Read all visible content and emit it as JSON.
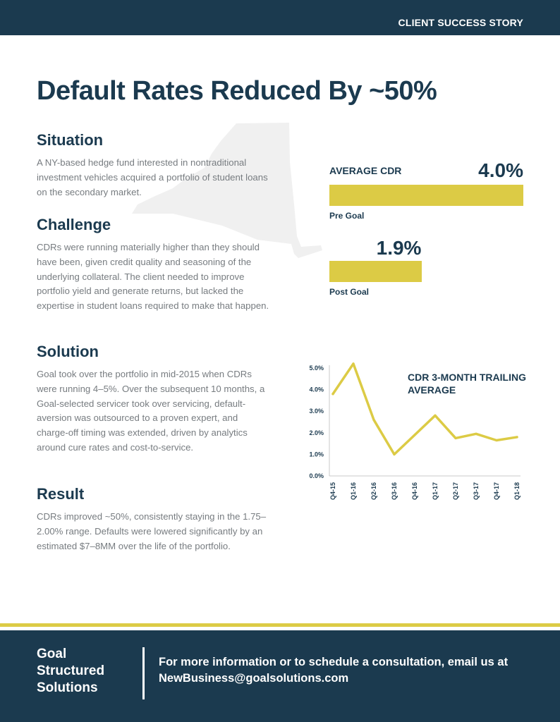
{
  "header": {
    "tag": "CLIENT SUCCESS STORY"
  },
  "title": "Default Rates Reduced By ~50%",
  "sections": [
    {
      "heading": "Situation",
      "body": "A NY-based hedge fund interested in nontraditional investment vehicles acquired a portfolio of student loans on the secondary market."
    },
    {
      "heading": "Challenge",
      "body": "CDRs were running materially higher than they should have been, given credit quality and seasoning of the underlying collateral. The client needed to improve portfolio yield and generate returns, but lacked the expertise in student loans required to make that happen."
    },
    {
      "heading": "Solution",
      "body": "Goal took over the portfolio in mid-2015 when CDRs were running 4–5%. Over the subsequent 10 months, a Goal-selected servicer took over servicing, default-aversion was outsourced to a proven expert, and charge-off timing was extended, driven by analytics around cure rates and cost-to-service."
    },
    {
      "heading": "Result",
      "body": "CDRs improved ~50%, consistently staying in the 1.75–2.00% range. Defaults were lowered significantly by an estimated $7–8MM over the life of the portfolio."
    }
  ],
  "colors": {
    "navy": "#1b3a4f",
    "gold": "#dccb45",
    "body_text": "#777c80",
    "map_gray": "#f0f0f0"
  },
  "chart_data": [
    {
      "type": "bar",
      "title": "AVERAGE CDR",
      "categories": [
        "Pre Goal",
        "Post Goal"
      ],
      "values": [
        4.0,
        1.9
      ],
      "value_labels": [
        "4.0%",
        "1.9%"
      ],
      "unit": "%",
      "orientation": "horizontal"
    },
    {
      "type": "line",
      "title": "CDR 3-MONTH TRAILING AVERAGE",
      "x": [
        "Q4-15",
        "Q1-16",
        "Q2-16",
        "Q3-16",
        "Q4-16",
        "Q1-17",
        "Q2-17",
        "Q3-17",
        "Q4-17",
        "Q1-18"
      ],
      "series": [
        {
          "values": [
            3.8,
            5.2,
            2.6,
            1.0,
            1.9,
            2.8,
            1.75,
            1.95,
            1.65,
            1.8
          ]
        }
      ],
      "yticks": [
        "5.0%",
        "4.0%",
        "3.0%",
        "2.0%",
        "1.0%",
        "0.0%"
      ],
      "ylim": [
        0,
        5
      ],
      "grid": false
    }
  ],
  "footer": {
    "brand_lines": [
      "Goal",
      "Structured",
      "Solutions"
    ],
    "cta": "For more information or to schedule a consultation, email us at NewBusiness@goalsolutions.com"
  }
}
